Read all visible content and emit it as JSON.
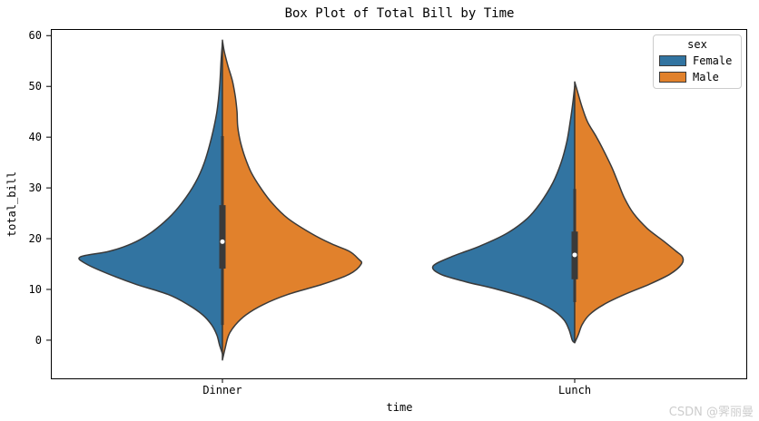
{
  "title": "Box Plot of Total Bill by Time",
  "watermark": "CSDN @霁丽曼",
  "chart_data": {
    "type": "violin",
    "title": "Box Plot of Total Bill by Time",
    "xlabel": "time",
    "ylabel": "total_bill",
    "ylim": [
      -7.7,
      61.3
    ],
    "yticks": [
      0,
      10,
      20,
      30,
      40,
      50,
      60
    ],
    "categories": [
      "Dinner",
      "Lunch"
    ],
    "grid": false,
    "legend": {
      "title": "sex",
      "position": "upper right",
      "entries": [
        {
          "label": "Female",
          "color": "#3274a1"
        },
        {
          "label": "Male",
          "color": "#e1812c"
        }
      ]
    },
    "edge_color": "#3a3a3a",
    "inner_box_color": "#3a3a3a",
    "median_dot_color": "#ffffff",
    "boxes": [
      {
        "category": "Dinner",
        "whisker_low": 3.0,
        "q1": 14.1,
        "median": 19.4,
        "q3": 26.6,
        "whisker_high": 40.2
      },
      {
        "category": "Lunch",
        "whisker_low": 7.5,
        "q1": 12.0,
        "median": 16.8,
        "q3": 21.4,
        "whisker_high": 29.8
      }
    ],
    "violins": [
      {
        "category": "Dinner",
        "series": "Female",
        "side": "left",
        "color": "#3274a1",
        "profile": [
          [
            58.6,
            0
          ],
          [
            55,
            0.004
          ],
          [
            50,
            0.008
          ],
          [
            45,
            0.016
          ],
          [
            40,
            0.031
          ],
          [
            35,
            0.052
          ],
          [
            31,
            0.078
          ],
          [
            27,
            0.117
          ],
          [
            24,
            0.156
          ],
          [
            21,
            0.209
          ],
          [
            19,
            0.261
          ],
          [
            17.5,
            0.326
          ],
          [
            16.4,
            0.409
          ],
          [
            15,
            0.391
          ],
          [
            13,
            0.326
          ],
          [
            11,
            0.248
          ],
          [
            9,
            0.156
          ],
          [
            7,
            0.099
          ],
          [
            5,
            0.057
          ],
          [
            3,
            0.031
          ],
          [
            1,
            0.016
          ],
          [
            -1,
            0.008
          ],
          [
            -2.7,
            0
          ]
        ]
      },
      {
        "category": "Dinner",
        "series": "Male",
        "side": "right",
        "color": "#e1812c",
        "profile": [
          [
            59.1,
            0
          ],
          [
            57,
            0.005
          ],
          [
            54,
            0.016
          ],
          [
            51,
            0.029
          ],
          [
            48,
            0.037
          ],
          [
            45,
            0.042
          ],
          [
            42,
            0.044
          ],
          [
            39,
            0.052
          ],
          [
            36,
            0.065
          ],
          [
            33,
            0.083
          ],
          [
            30,
            0.11
          ],
          [
            27,
            0.143
          ],
          [
            24,
            0.188
          ],
          [
            21,
            0.256
          ],
          [
            19,
            0.313
          ],
          [
            17.5,
            0.365
          ],
          [
            16,
            0.391
          ],
          [
            15,
            0.399
          ],
          [
            13,
            0.365
          ],
          [
            11,
            0.287
          ],
          [
            9,
            0.188
          ],
          [
            7,
            0.117
          ],
          [
            5,
            0.068
          ],
          [
            3,
            0.037
          ],
          [
            1,
            0.018
          ],
          [
            -1.5,
            0.008
          ],
          [
            -3.9,
            0
          ]
        ]
      },
      {
        "category": "Lunch",
        "series": "Female",
        "side": "left",
        "color": "#3274a1",
        "profile": [
          [
            50,
            0
          ],
          [
            47,
            0.005
          ],
          [
            43,
            0.013
          ],
          [
            39,
            0.023
          ],
          [
            35,
            0.039
          ],
          [
            31,
            0.063
          ],
          [
            27,
            0.099
          ],
          [
            24,
            0.136
          ],
          [
            21,
            0.196
          ],
          [
            18.5,
            0.274
          ],
          [
            16.5,
            0.352
          ],
          [
            14.6,
            0.407
          ],
          [
            13,
            0.386
          ],
          [
            11.5,
            0.313
          ],
          [
            10,
            0.222
          ],
          [
            8,
            0.125
          ],
          [
            6,
            0.065
          ],
          [
            4,
            0.031
          ],
          [
            2,
            0.016
          ],
          [
            0,
            0.007
          ],
          [
            -0.5,
            0
          ]
        ]
      },
      {
        "category": "Lunch",
        "series": "Male",
        "side": "right",
        "color": "#e1812c",
        "profile": [
          [
            50.9,
            0
          ],
          [
            49,
            0.008
          ],
          [
            46,
            0.021
          ],
          [
            43,
            0.037
          ],
          [
            40,
            0.063
          ],
          [
            37,
            0.086
          ],
          [
            34,
            0.107
          ],
          [
            31,
            0.125
          ],
          [
            28,
            0.143
          ],
          [
            25,
            0.169
          ],
          [
            22,
            0.209
          ],
          [
            19.5,
            0.256
          ],
          [
            17.5,
            0.292
          ],
          [
            16.4,
            0.31
          ],
          [
            15,
            0.308
          ],
          [
            13,
            0.274
          ],
          [
            11,
            0.214
          ],
          [
            9,
            0.143
          ],
          [
            7,
            0.083
          ],
          [
            5,
            0.042
          ],
          [
            3,
            0.021
          ],
          [
            1,
            0.01
          ],
          [
            -0.5,
            0
          ]
        ]
      }
    ]
  }
}
